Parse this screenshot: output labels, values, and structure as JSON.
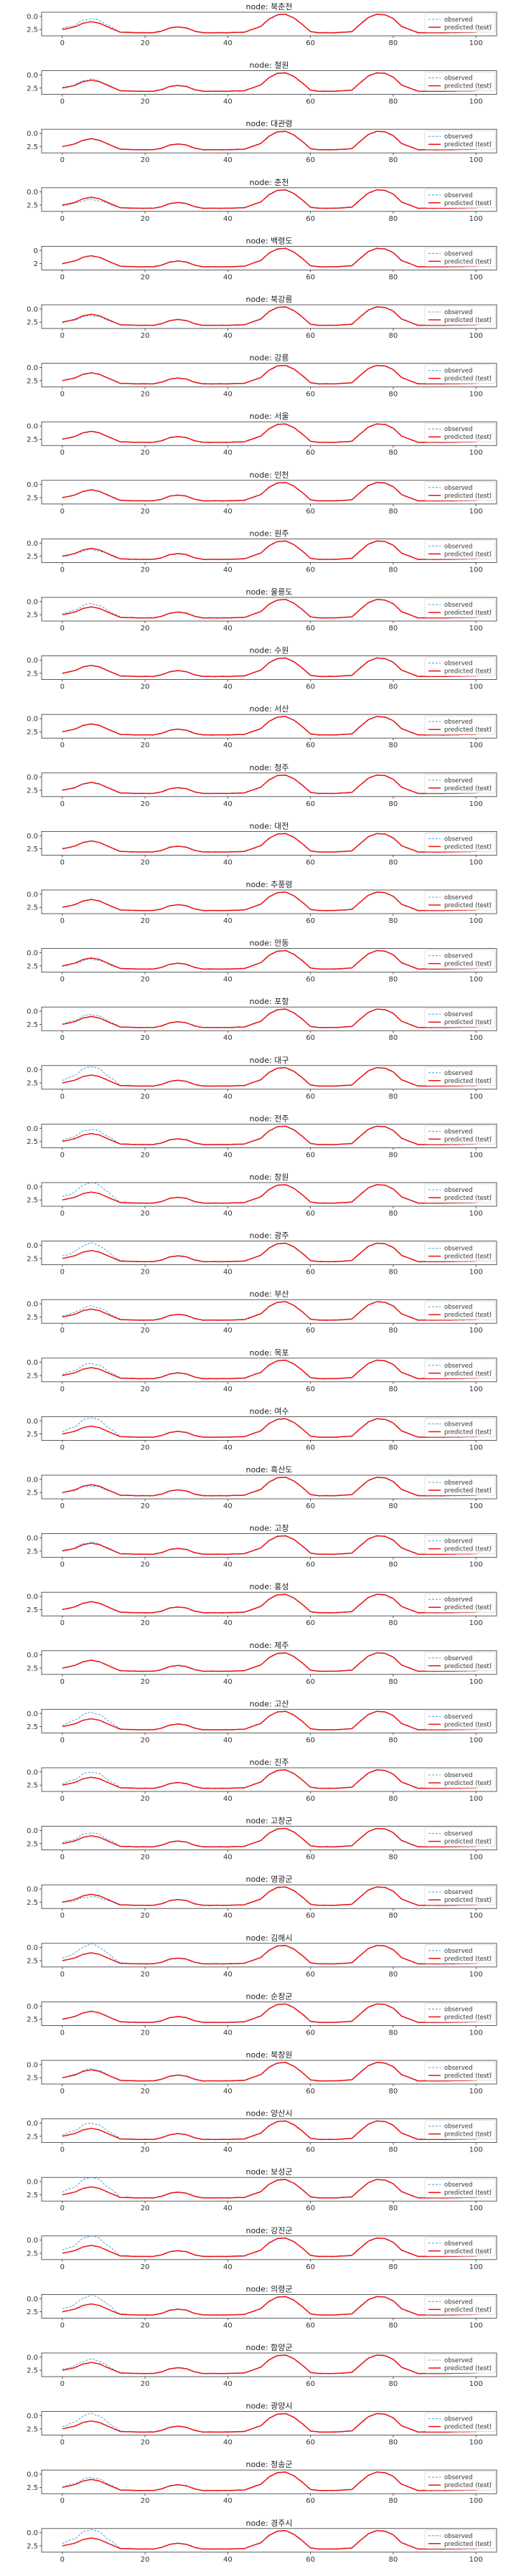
{
  "chart_data": {
    "type": "line",
    "layout": "small-multiples",
    "x_ticks": [
      0,
      20,
      40,
      60,
      80,
      100
    ],
    "xlim": [
      -5,
      105
    ],
    "y_ticks": [
      0.0,
      2.5
    ],
    "ylim": [
      -1.2,
      3.3
    ],
    "legend": {
      "placement": "right",
      "entries": [
        "observed",
        "predicted (test)"
      ]
    },
    "series_styles": {
      "observed": {
        "color": "#5aa8e0",
        "style": "dashed"
      },
      "predicted": {
        "color": "#ee1111",
        "style": "solid"
      }
    },
    "base_profile": {
      "x": [
        0,
        3,
        5,
        7,
        9,
        11,
        14,
        18,
        22,
        24,
        26,
        28,
        30,
        32,
        34,
        40,
        44,
        48,
        50,
        52,
        54,
        56,
        58,
        60,
        62,
        66,
        70,
        72,
        74,
        76,
        78,
        80,
        82,
        86,
        92,
        100,
        104
      ],
      "y": [
        0.0,
        0.5,
        1.2,
        1.5,
        1.2,
        0.5,
        -0.5,
        -0.6,
        -0.6,
        -0.3,
        0.3,
        0.5,
        0.3,
        -0.3,
        -0.6,
        -0.6,
        -0.5,
        0.6,
        2.0,
        2.8,
        2.9,
        2.2,
        1.0,
        -0.4,
        -0.6,
        -0.6,
        -0.4,
        1.0,
        2.3,
        2.9,
        2.8,
        2.1,
        0.6,
        -0.6,
        -0.6,
        -0.5,
        1.0
      ]
    },
    "panels": [
      {
        "title": "node: 북춘천",
        "y_ticks": [
          "2.5",
          "0.0"
        ],
        "obs_scale": 1.3
      },
      {
        "title": "node: 철원",
        "y_ticks": [
          "2.5",
          "0.0"
        ],
        "obs_scale": 1.1
      },
      {
        "title": "node: 대관령",
        "y_ticks": [
          "2.5",
          "0.0"
        ],
        "obs_scale": 1.0
      },
      {
        "title": "node: 춘천",
        "y_ticks": [
          "2.5",
          "0.0"
        ],
        "obs_scale": 0.8
      },
      {
        "title": "node: 백령도",
        "y_ticks": [
          "2",
          "0"
        ],
        "obs_scale": 1.0
      },
      {
        "title": "node: 북강릉",
        "y_ticks": [
          "2.5",
          "0.0"
        ],
        "obs_scale": 0.9
      },
      {
        "title": "node: 강릉",
        "y_ticks": [
          "2.5",
          "0.0"
        ],
        "obs_scale": 1.0
      },
      {
        "title": "node: 서울",
        "y_ticks": [
          "2.5",
          "0.0"
        ],
        "obs_scale": 1.0
      },
      {
        "title": "node: 인천",
        "y_ticks": [
          "2.5",
          "0.0"
        ],
        "obs_scale": 1.0
      },
      {
        "title": "node: 원주",
        "y_ticks": [
          "2.5",
          "0.0"
        ],
        "obs_scale": 0.9
      },
      {
        "title": "node: 울릉도",
        "y_ticks": [
          "2.5",
          "0.0"
        ],
        "obs_scale": 1.3
      },
      {
        "title": "node: 수원",
        "y_ticks": [
          "2.5",
          "0.0"
        ],
        "obs_scale": 1.0
      },
      {
        "title": "node: 서산",
        "y_ticks": [
          "2.5",
          "0.0"
        ],
        "obs_scale": 1.0
      },
      {
        "title": "node: 청주",
        "y_ticks": [
          "2.5",
          "0.0"
        ],
        "obs_scale": 1.0
      },
      {
        "title": "node: 대전",
        "y_ticks": [
          "2.5",
          "0.0"
        ],
        "obs_scale": 1.0
      },
      {
        "title": "node: 추풍령",
        "y_ticks": [
          "2.5",
          "0.0"
        ],
        "obs_scale": 1.0
      },
      {
        "title": "node: 안동",
        "y_ticks": [
          "2.5",
          "0.0"
        ],
        "obs_scale": 0.9
      },
      {
        "title": "node: 포항",
        "y_ticks": [
          "2.5",
          "0.0"
        ],
        "obs_scale": 1.2
      },
      {
        "title": "node: 대구",
        "y_ticks": [
          "2.5",
          "0.0"
        ],
        "obs_scale": 1.8
      },
      {
        "title": "node: 전주",
        "y_ticks": [
          "2.5",
          "0.0"
        ],
        "obs_scale": 1.4
      },
      {
        "title": "node: 창원",
        "y_ticks": [
          "2.5",
          "0.0"
        ],
        "obs_scale": 1.9
      },
      {
        "title": "node: 광주",
        "y_ticks": [
          "2.5",
          "0.0"
        ],
        "obs_scale": 1.7
      },
      {
        "title": "node: 부산",
        "y_ticks": [
          "2.5",
          "0.0"
        ],
        "obs_scale": 1.3
      },
      {
        "title": "node: 목포",
        "y_ticks": [
          "2.5",
          "0.0"
        ],
        "obs_scale": 1.4
      },
      {
        "title": "node: 여수",
        "y_ticks": [
          "2.5",
          "0.0"
        ],
        "obs_scale": 1.8
      },
      {
        "title": "node: 흑산도",
        "y_ticks": [
          "2.5",
          "0.0"
        ],
        "obs_scale": 0.9
      },
      {
        "title": "node: 고창",
        "y_ticks": [
          "2.5",
          "0.0"
        ],
        "obs_scale": 1.1
      },
      {
        "title": "node: 홍성",
        "y_ticks": [
          "2.5",
          "0.0"
        ],
        "obs_scale": 1.0
      },
      {
        "title": "node: 제주",
        "y_ticks": [
          "2.5",
          "0.0"
        ],
        "obs_scale": 1.0
      },
      {
        "title": "node: 고산",
        "y_ticks": [
          "2.5",
          "0.0"
        ],
        "obs_scale": 1.6
      },
      {
        "title": "node: 진주",
        "y_ticks": [
          "2.5",
          "0.0"
        ],
        "obs_scale": 1.5
      },
      {
        "title": "node: 고창군",
        "y_ticks": [
          "2.5",
          "0.0"
        ],
        "obs_scale": 1.3
      },
      {
        "title": "node: 영광군",
        "y_ticks": [
          "2.5",
          "0.0"
        ],
        "obs_scale": 0.8
      },
      {
        "title": "node: 김해시",
        "y_ticks": [
          "2.5",
          "0.0"
        ],
        "obs_scale": 1.8
      },
      {
        "title": "node: 순창군",
        "y_ticks": [
          "2.5",
          "0.0"
        ],
        "obs_scale": 1.0
      },
      {
        "title": "node: 북창원",
        "y_ticks": [
          "2.5",
          "0.0"
        ],
        "obs_scale": 1.1
      },
      {
        "title": "node: 양산시",
        "y_ticks": [
          "2.5",
          "0.0"
        ],
        "obs_scale": 1.5
      },
      {
        "title": "node: 보성군",
        "y_ticks": [
          "2.5",
          "0.0"
        ],
        "obs_scale": 1.9
      },
      {
        "title": "node: 강진군",
        "y_ticks": [
          "2.5",
          "0.0"
        ],
        "obs_scale": 1.9
      },
      {
        "title": "node: 의령군",
        "y_ticks": [
          "2.5",
          "0.0"
        ],
        "obs_scale": 1.8
      },
      {
        "title": "node: 함양군",
        "y_ticks": [
          "2.5",
          "0.0"
        ],
        "obs_scale": 1.3
      },
      {
        "title": "node: 광양시",
        "y_ticks": [
          "2.5",
          "0.0"
        ],
        "obs_scale": 1.7
      },
      {
        "title": "node: 청송군",
        "y_ticks": [
          "2.5",
          "0.0"
        ],
        "obs_scale": 1.2
      },
      {
        "title": "node: 경주시",
        "y_ticks": [
          "2.5",
          "0.0"
        ],
        "obs_scale": 1.8
      }
    ]
  }
}
